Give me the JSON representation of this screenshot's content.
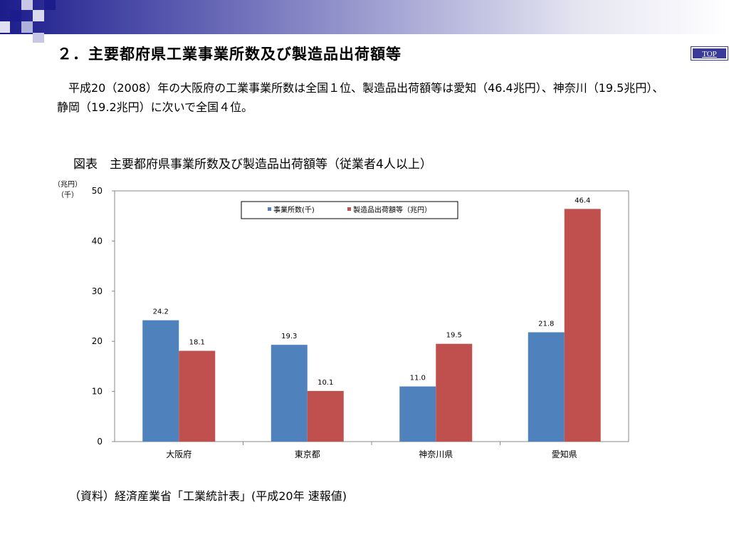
{
  "page": {
    "title": "２．主要都府県工業事業所数及び製造品出荷額等",
    "top_label": "TOP",
    "body_text": "　平成20（2008）年の大阪府の工業事業所数は全国１位、製造品出荷額等は愛知（46.4兆円）、神奈川（19.5兆円）、静岡（19.2兆円）に次いで全国４位。",
    "figure_caption": "図表　主要都府県事業所数及び製造品出荷額等（従業者4人以上）",
    "source_note": "（資料）経済産業省「工業統計表」(平成20年 速報値)",
    "colors": {
      "header_dark": "#1c1c8c",
      "accent": "#3a3a9a"
    }
  },
  "chart_data": {
    "type": "bar",
    "unit_label_line1": "（兆円）",
    "unit_label_line2": "（千）",
    "categories": [
      "大阪府",
      "東京都",
      "神奈川県",
      "愛知県"
    ],
    "series": [
      {
        "name": "事業所数(千)",
        "color": "#4f81bd",
        "values": [
          24.2,
          19.3,
          11.0,
          21.8
        ]
      },
      {
        "name": "製造品出荷額等（兆円）",
        "color": "#c0504d",
        "values": [
          18.1,
          10.1,
          19.5,
          46.4
        ]
      }
    ],
    "ylim": [
      0,
      50
    ],
    "yticks": [
      0,
      10,
      20,
      30,
      40,
      50
    ],
    "grid": false,
    "legend": "top-center",
    "data_labels": true
  }
}
